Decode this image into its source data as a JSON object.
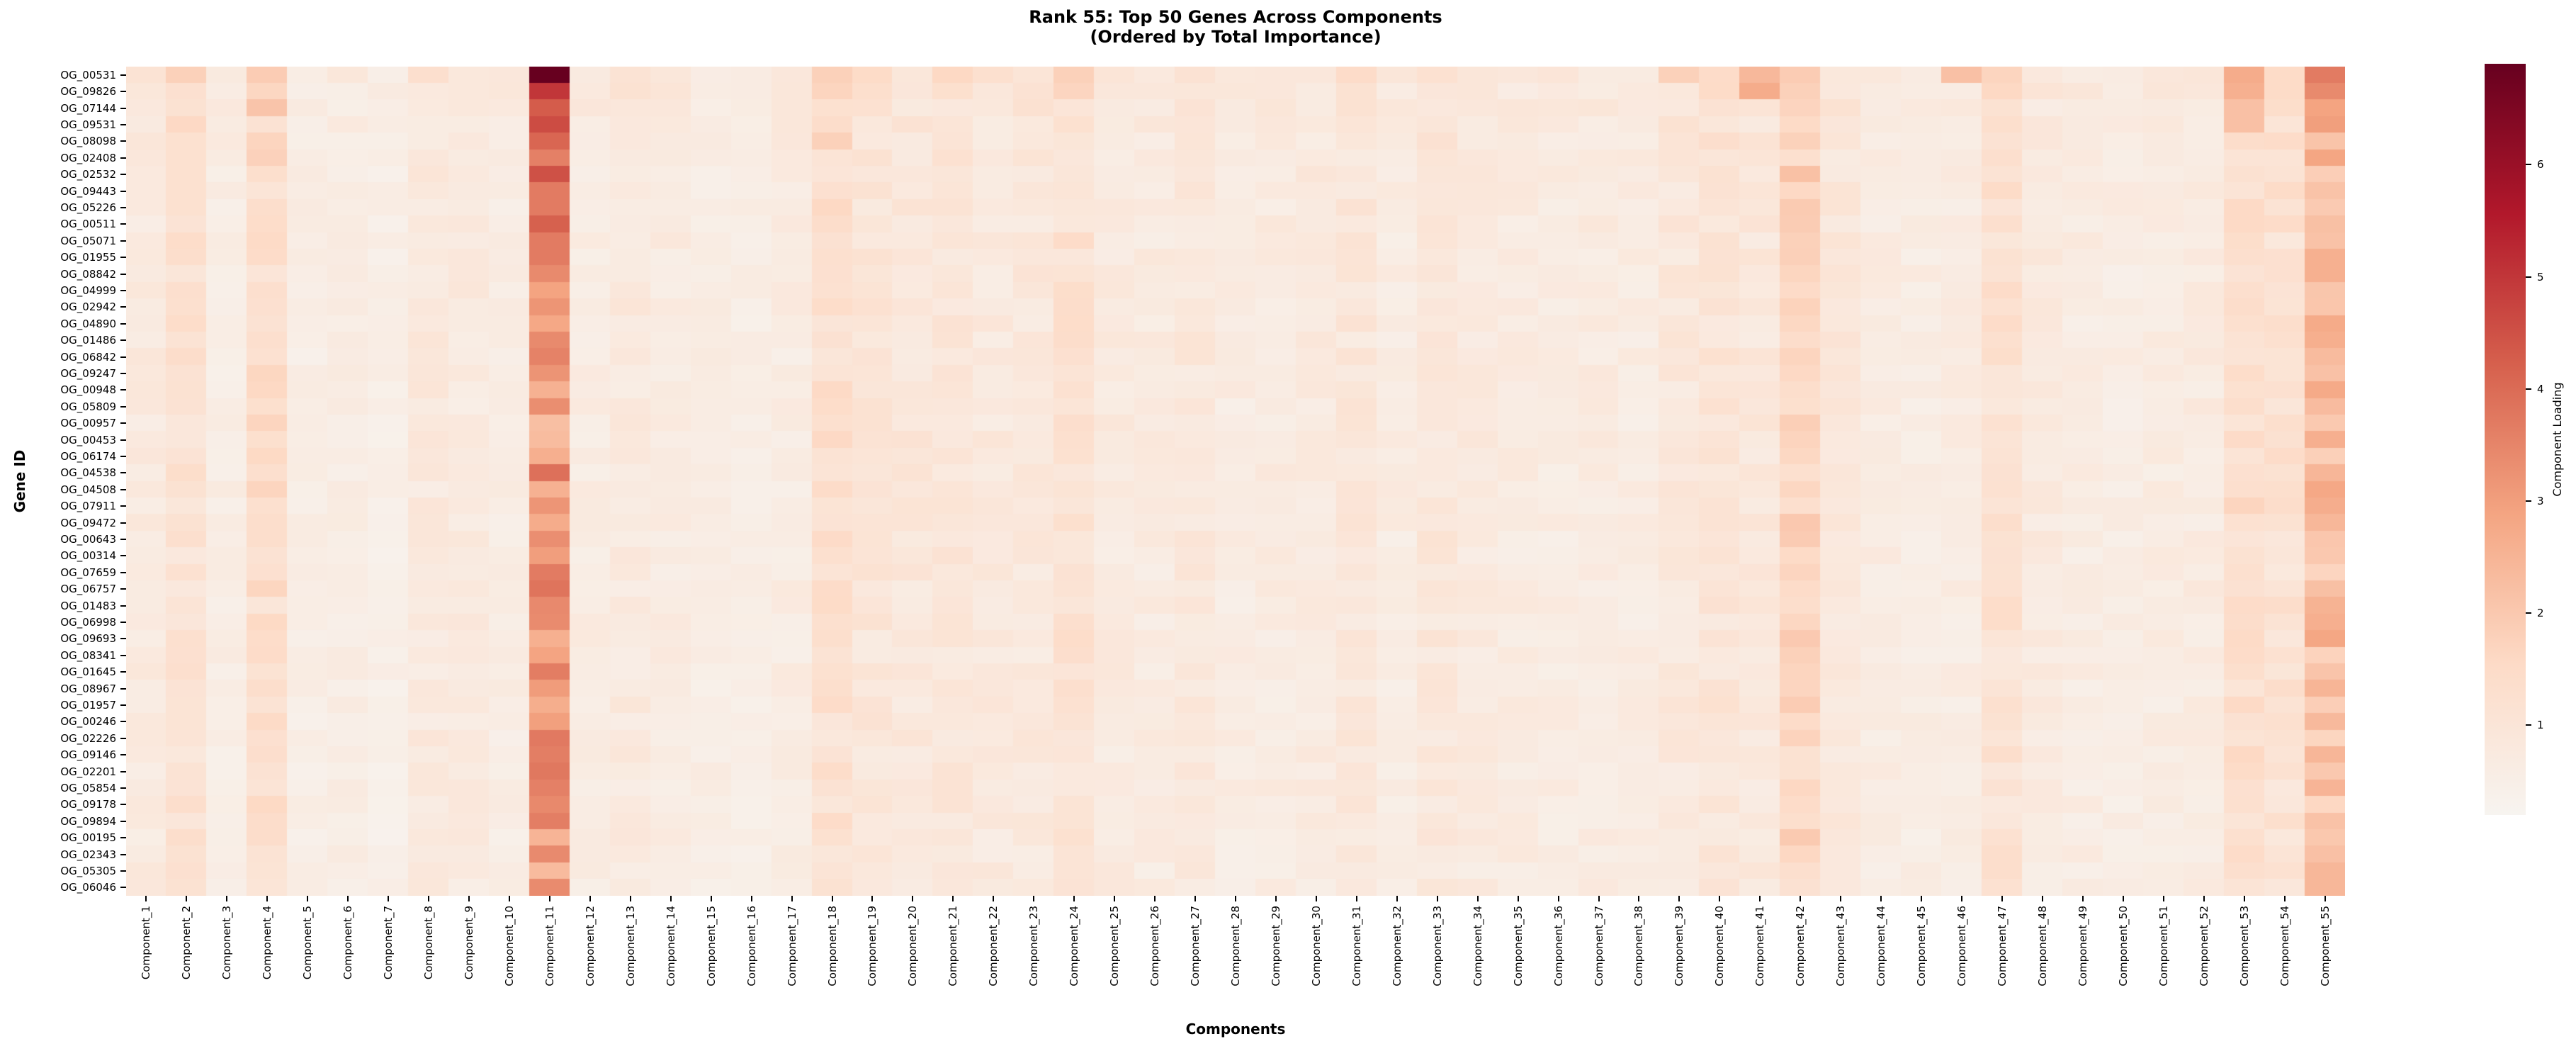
{
  "title": {
    "line1": "Rank 55: Top 50 Genes Across Components",
    "line2": "(Ordered by Total Importance)"
  },
  "axes": {
    "x_label": "Components",
    "y_label": "Gene ID"
  },
  "chart_data": {
    "type": "heatmap",
    "x_categories": [
      "Component_1",
      "Component_2",
      "Component_3",
      "Component_4",
      "Component_5",
      "Component_6",
      "Component_7",
      "Component_8",
      "Component_9",
      "Component_10",
      "Component_11",
      "Component_12",
      "Component_13",
      "Component_14",
      "Component_15",
      "Component_16",
      "Component_17",
      "Component_18",
      "Component_19",
      "Component_20",
      "Component_21",
      "Component_22",
      "Component_23",
      "Component_24",
      "Component_25",
      "Component_26",
      "Component_27",
      "Component_28",
      "Component_29",
      "Component_30",
      "Component_31",
      "Component_32",
      "Component_33",
      "Component_34",
      "Component_35",
      "Component_36",
      "Component_37",
      "Component_38",
      "Component_39",
      "Component_40",
      "Component_41",
      "Component_42",
      "Component_43",
      "Component_44",
      "Component_45",
      "Component_46",
      "Component_47",
      "Component_48",
      "Component_49",
      "Component_50",
      "Component_51",
      "Component_52",
      "Component_53",
      "Component_54",
      "Component_55"
    ],
    "y_categories": [
      "OG_00531",
      "OG_09826",
      "OG_07144",
      "OG_09531",
      "OG_08098",
      "OG_02408",
      "OG_02532",
      "OG_09443",
      "OG_05226",
      "OG_00511",
      "OG_05071",
      "OG_01955",
      "OG_08842",
      "OG_04999",
      "OG_02942",
      "OG_04890",
      "OG_01486",
      "OG_06842",
      "OG_09247",
      "OG_00948",
      "OG_05809",
      "OG_00957",
      "OG_00453",
      "OG_06174",
      "OG_04538",
      "OG_04508",
      "OG_07911",
      "OG_09472",
      "OG_00643",
      "OG_00314",
      "OG_07659",
      "OG_06757",
      "OG_01483",
      "OG_06998",
      "OG_09693",
      "OG_08341",
      "OG_01645",
      "OG_08967",
      "OG_01957",
      "OG_00246",
      "OG_02226",
      "OG_09146",
      "OG_02201",
      "OG_05854",
      "OG_09178",
      "OG_09894",
      "OG_00195",
      "OG_02343",
      "OG_05305",
      "OG_06046"
    ],
    "colorbar": {
      "label": "Component Loading",
      "ticks": [
        1,
        2,
        3,
        4,
        5,
        6
      ],
      "vmin": 0.2,
      "vmax": 6.9,
      "stops": [
        "#f7f4f0",
        "#fddbc7",
        "#f4a582",
        "#d6604d",
        "#b2182b",
        "#67001f"
      ]
    },
    "column_base": [
      0.75,
      1.15,
      0.6,
      1.35,
      0.55,
      0.6,
      0.5,
      0.8,
      0.75,
      0.6,
      3.1,
      0.65,
      0.8,
      0.7,
      0.6,
      0.55,
      0.65,
      1.25,
      0.95,
      0.9,
      0.95,
      0.8,
      0.85,
      1.15,
      0.75,
      0.7,
      0.85,
      0.65,
      0.7,
      0.75,
      0.9,
      0.65,
      0.9,
      0.75,
      0.7,
      0.65,
      0.7,
      0.65,
      0.85,
      1.0,
      0.85,
      1.65,
      0.85,
      0.65,
      0.6,
      0.65,
      1.15,
      0.75,
      0.65,
      0.6,
      0.65,
      0.7,
      1.35,
      1.15,
      2.3
    ],
    "row_factor": [
      1.3,
      1.18,
      1.12,
      1.1,
      1.06,
      1.04,
      1.04,
      1.03,
      1.03,
      1.02,
      1.01,
      1.01,
      1.01,
      1.01,
      1.01,
      1.0,
      1.0,
      1.0,
      1.0,
      1.0,
      1.0,
      1.0,
      1.0,
      1.0,
      1.0,
      0.99,
      0.99,
      0.99,
      0.99,
      0.99,
      0.98,
      0.98,
      0.98,
      0.98,
      0.98,
      0.97,
      0.97,
      0.97,
      0.97,
      0.97,
      0.96,
      0.96,
      0.96,
      0.96,
      0.96,
      0.95,
      0.95,
      0.95,
      0.95,
      0.95
    ],
    "cell_overrides": [
      [
        1,
        11,
        6.9
      ],
      [
        2,
        11,
        5.0
      ],
      [
        3,
        11,
        4.3
      ],
      [
        4,
        11,
        4.6
      ],
      [
        5,
        11,
        4.1
      ],
      [
        6,
        11,
        3.6
      ],
      [
        7,
        11,
        4.5
      ],
      [
        8,
        11,
        3.7
      ],
      [
        9,
        11,
        3.7
      ],
      [
        10,
        11,
        4.2
      ],
      [
        11,
        11,
        3.7
      ],
      [
        12,
        11,
        3.7
      ],
      [
        13,
        11,
        3.4
      ],
      [
        14,
        11,
        2.9
      ],
      [
        15,
        11,
        3.2
      ],
      [
        16,
        11,
        2.8
      ],
      [
        17,
        11,
        3.4
      ],
      [
        44,
        11,
        3.6
      ],
      [
        1,
        55,
        3.7
      ],
      [
        2,
        55,
        3.4
      ],
      [
        3,
        55,
        2.9
      ],
      [
        4,
        55,
        3.0
      ],
      [
        12,
        55,
        2.6
      ],
      [
        13,
        55,
        2.6
      ],
      [
        1,
        53,
        2.7
      ],
      [
        2,
        53,
        2.6
      ],
      [
        3,
        53,
        2.2
      ],
      [
        4,
        53,
        2.2
      ],
      [
        1,
        54,
        1.5
      ],
      [
        2,
        54,
        1.5
      ],
      [
        1,
        4,
        1.9
      ],
      [
        3,
        4,
        2.1
      ],
      [
        5,
        4,
        1.7
      ],
      [
        1,
        2,
        1.8
      ],
      [
        1,
        41,
        2.4
      ],
      [
        2,
        41,
        2.7
      ],
      [
        1,
        46,
        2.2
      ],
      [
        1,
        47,
        1.7
      ],
      [
        2,
        47,
        1.6
      ],
      [
        1,
        42,
        1.9
      ],
      [
        2,
        42,
        1.8
      ],
      [
        1,
        39,
        1.8
      ],
      [
        1,
        24,
        1.8
      ],
      [
        1,
        18,
        1.8
      ],
      [
        2,
        18,
        1.7
      ],
      [
        5,
        18,
        1.8
      ],
      [
        1,
        21,
        1.6
      ],
      [
        1,
        19,
        1.5
      ]
    ]
  }
}
